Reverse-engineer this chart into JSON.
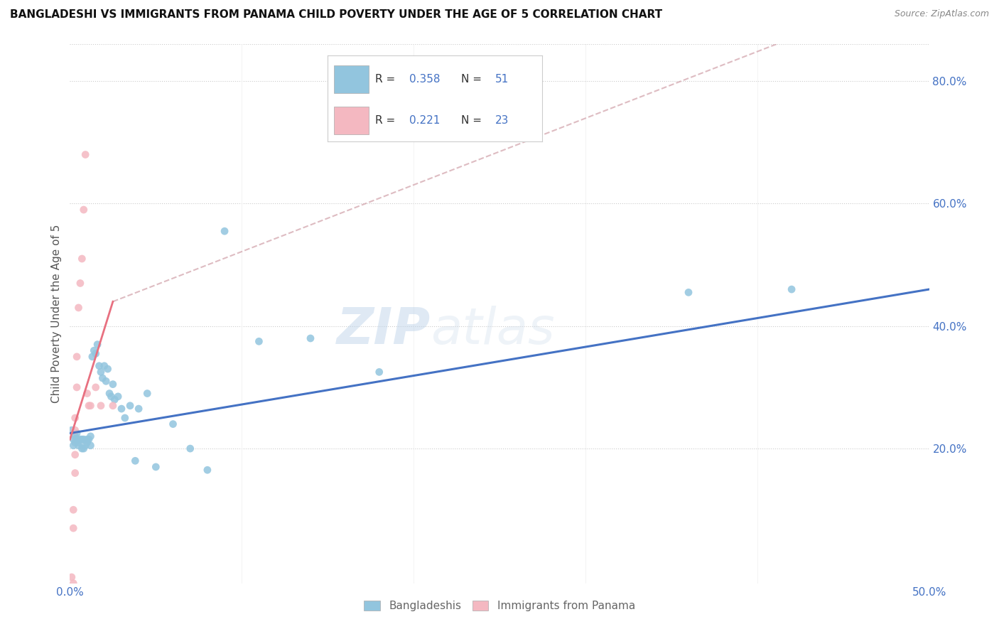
{
  "title": "BANGLADESHI VS IMMIGRANTS FROM PANAMA CHILD POVERTY UNDER THE AGE OF 5 CORRELATION CHART",
  "source": "Source: ZipAtlas.com",
  "ylabel": "Child Poverty Under the Age of 5",
  "xlim": [
    0.0,
    0.5
  ],
  "ylim": [
    -0.02,
    0.86
  ],
  "color_bangladeshi": "#92C5DE",
  "color_panama": "#F4B8C1",
  "color_blue_text": "#4472C4",
  "trendline_bangladeshi_color": "#4472C4",
  "trendline_panama_color": "#E87080",
  "trendline_panama_dash_color": "#D0A0A8",
  "watermark_zip": "ZIP",
  "watermark_atlas": "atlas",
  "bangladeshi_x": [
    0.001,
    0.002,
    0.002,
    0.003,
    0.003,
    0.004,
    0.004,
    0.005,
    0.005,
    0.006,
    0.007,
    0.007,
    0.008,
    0.008,
    0.009,
    0.01,
    0.01,
    0.011,
    0.012,
    0.012,
    0.013,
    0.014,
    0.015,
    0.016,
    0.017,
    0.018,
    0.019,
    0.02,
    0.021,
    0.022,
    0.023,
    0.024,
    0.025,
    0.026,
    0.028,
    0.03,
    0.032,
    0.035,
    0.038,
    0.04,
    0.045,
    0.05,
    0.06,
    0.07,
    0.08,
    0.09,
    0.11,
    0.14,
    0.18,
    0.36,
    0.42
  ],
  "bangladeshi_y": [
    0.23,
    0.215,
    0.205,
    0.22,
    0.21,
    0.225,
    0.215,
    0.21,
    0.205,
    0.215,
    0.215,
    0.2,
    0.215,
    0.2,
    0.205,
    0.21,
    0.215,
    0.215,
    0.22,
    0.205,
    0.35,
    0.36,
    0.355,
    0.37,
    0.335,
    0.325,
    0.315,
    0.335,
    0.31,
    0.33,
    0.29,
    0.285,
    0.305,
    0.28,
    0.285,
    0.265,
    0.25,
    0.27,
    0.18,
    0.265,
    0.29,
    0.17,
    0.24,
    0.2,
    0.165,
    0.555,
    0.375,
    0.38,
    0.325,
    0.455,
    0.46
  ],
  "panama_x": [
    0.001,
    0.001,
    0.001,
    0.002,
    0.002,
    0.002,
    0.003,
    0.003,
    0.003,
    0.003,
    0.004,
    0.004,
    0.005,
    0.006,
    0.007,
    0.008,
    0.009,
    0.01,
    0.011,
    0.012,
    0.015,
    0.018,
    0.025
  ],
  "panama_y": [
    -0.01,
    -0.03,
    -0.06,
    -0.02,
    0.07,
    0.1,
    0.16,
    0.19,
    0.23,
    0.25,
    0.3,
    0.35,
    0.43,
    0.47,
    0.51,
    0.59,
    0.68,
    0.29,
    0.27,
    0.27,
    0.3,
    0.27,
    0.27
  ],
  "trendline_b_x0": 0.0,
  "trendline_b_x1": 0.5,
  "trendline_b_y0": 0.225,
  "trendline_b_y1": 0.46,
  "trendline_p_solid_x0": 0.0,
  "trendline_p_solid_x1": 0.025,
  "trendline_p_solid_y0": 0.215,
  "trendline_p_solid_y1": 0.44,
  "trendline_p_dash_x0": 0.025,
  "trendline_p_dash_x1": 0.42,
  "trendline_p_dash_y0": 0.44,
  "trendline_p_dash_y1": 0.87
}
